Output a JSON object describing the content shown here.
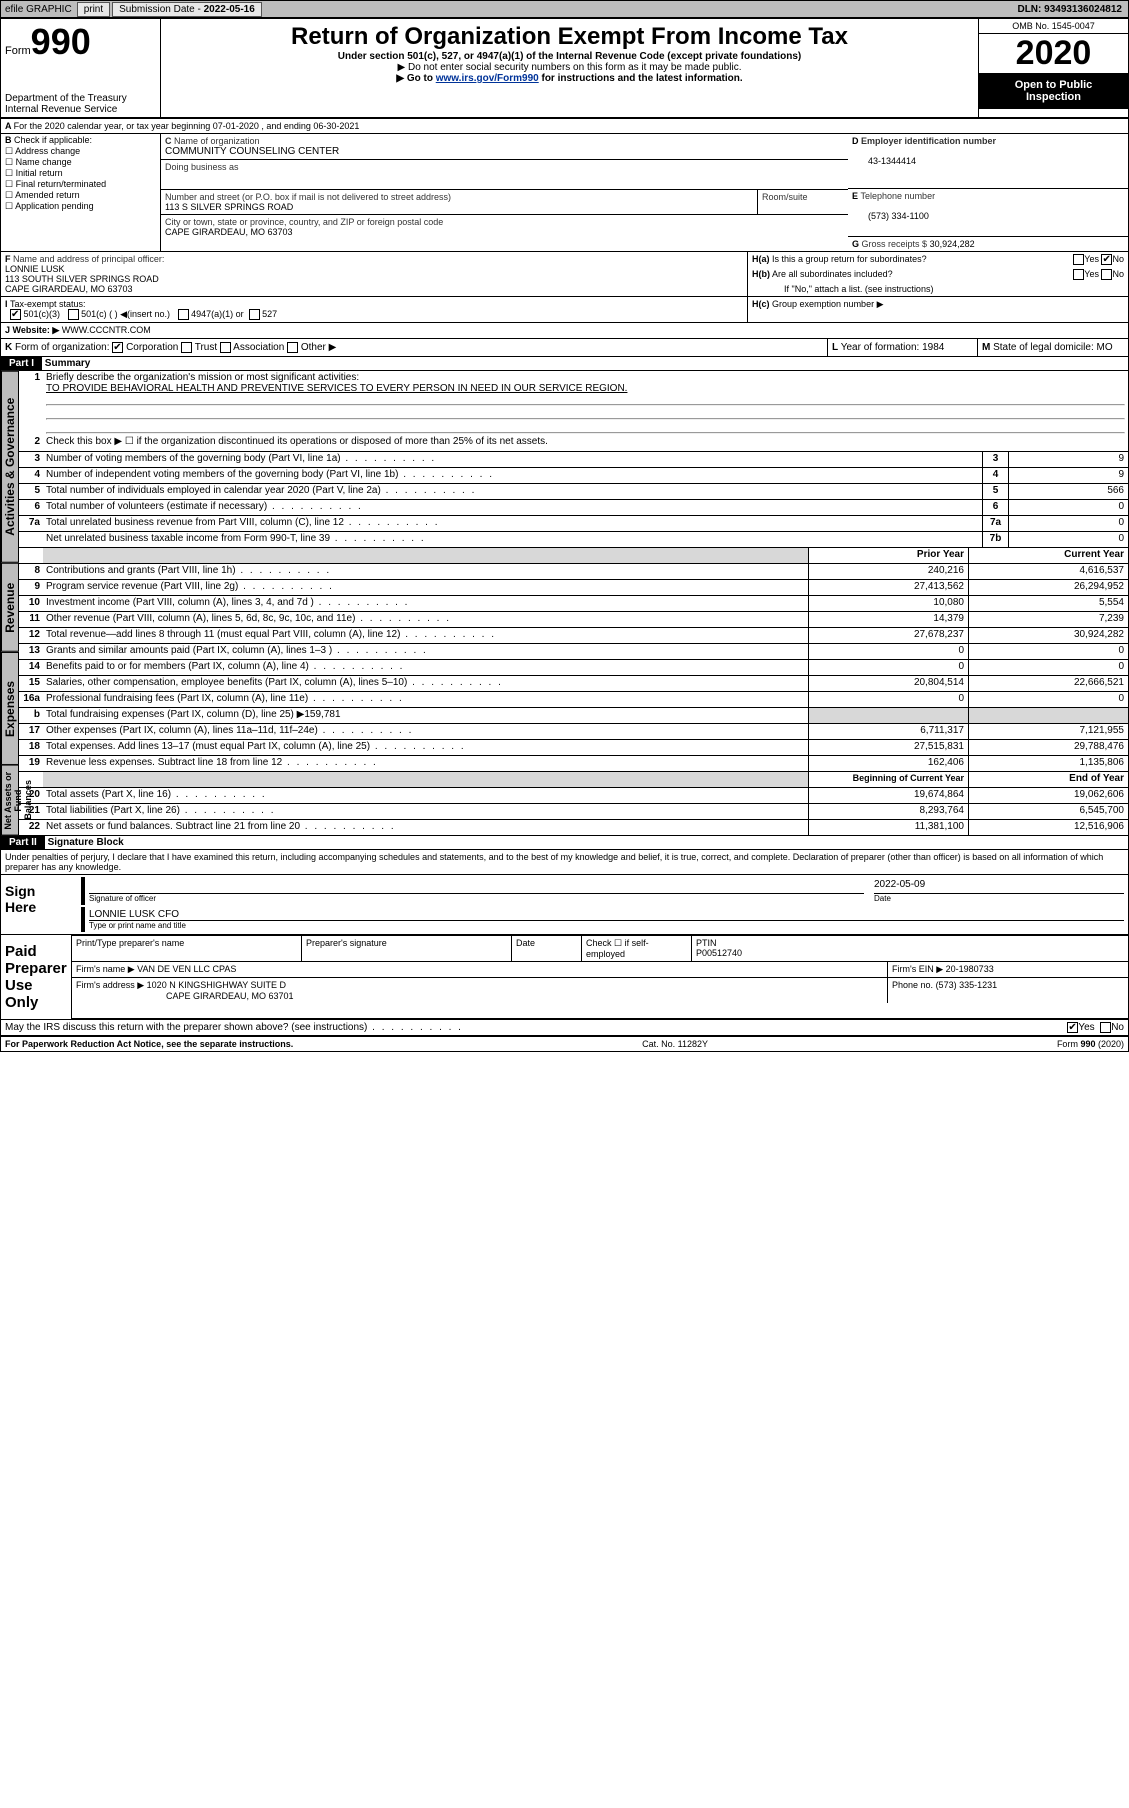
{
  "topbar": {
    "efile": "efile GRAPHIC",
    "print": "print",
    "subdate_lbl": "Submission Date -",
    "subdate": "2022-05-16",
    "dln": "DLN: 93493136024812"
  },
  "header": {
    "form_prefix": "Form",
    "form_no": "990",
    "dept1": "Department of the Treasury",
    "dept2": "Internal Revenue Service",
    "title": "Return of Organization Exempt From Income Tax",
    "sub1": "Under section 501(c), 527, or 4947(a)(1) of the Internal Revenue Code (except private foundations)",
    "sub2": "▶ Do not enter social security numbers on this form as it may be made public.",
    "sub3_pre": "▶ Go to ",
    "sub3_link": "www.irs.gov/Form990",
    "sub3_post": " for instructions and the latest information.",
    "omb": "OMB No. 1545-0047",
    "year": "2020",
    "otp1": "Open to Public",
    "otp2": "Inspection"
  },
  "A": {
    "text": "For the 2020 calendar year, or tax year beginning 07-01-2020    , and ending 06-30-2021"
  },
  "B": {
    "hdr": "Check if applicable:",
    "opts": [
      "Address change",
      "Name change",
      "Initial return",
      "Final return/terminated",
      "Amended return",
      "Application pending"
    ]
  },
  "C": {
    "name_lbl": "Name of organization",
    "name": "COMMUNITY COUNSELING CENTER",
    "dba_lbl": "Doing business as",
    "dba": "",
    "addr_lbl": "Number and street (or P.O. box if mail is not delivered to street address)",
    "room_lbl": "Room/suite",
    "addr": "113 S SILVER SPRINGS ROAD",
    "city_lbl": "City or town, state or province, country, and ZIP or foreign postal code",
    "city": "CAPE GIRARDEAU, MO  63703"
  },
  "D": {
    "lbl": "Employer identification number",
    "val": "43-1344414"
  },
  "E": {
    "lbl": "Telephone number",
    "val": "(573) 334-1100"
  },
  "G": {
    "lbl": "Gross receipts $",
    "val": "30,924,282"
  },
  "F": {
    "lbl": "Name and address of principal officer:",
    "name": "LONNIE LUSK",
    "addr1": "113 SOUTH SILVER SPRINGS ROAD",
    "addr2": "CAPE GIRARDEAU, MO  63703"
  },
  "H": {
    "a": "Is this a group return for subordinates?",
    "b": "Are all subordinates included?",
    "note": "If \"No,\" attach a list. (see instructions)",
    "c": "Group exemption number ▶",
    "yes": "Yes",
    "no": "No"
  },
  "I": {
    "lbl": "Tax-exempt status:",
    "o1": "501(c)(3)",
    "o2": "501(c) (  ) ◀(insert no.)",
    "o3": "4947(a)(1) or",
    "o4": "527"
  },
  "J": {
    "lbl": "Website: ▶",
    "val": "WWW.CCCNTR.COM"
  },
  "K": {
    "lbl": "Form of organization:",
    "o1": "Corporation",
    "o2": "Trust",
    "o3": "Association",
    "o4": "Other ▶"
  },
  "L": {
    "lbl": "Year of formation:",
    "val": "1984"
  },
  "M": {
    "lbl": "State of legal domicile:",
    "val": "MO"
  },
  "part1": {
    "hdr": "Part I",
    "title": "Summary"
  },
  "sidetabs": {
    "ag": "Activities & Governance",
    "rev": "Revenue",
    "exp": "Expenses",
    "na": "Net Assets or Fund Balances"
  },
  "s": {
    "q1": "Briefly describe the organization's mission or most significant activities:",
    "q1v": "TO PROVIDE BEHAVIORAL HEALTH AND PREVENTIVE SERVICES TO EVERY PERSON IN NEED IN OUR SERVICE REGION.",
    "q2": "Check this box ▶ ☐  if the organization discontinued its operations or disposed of more than 25% of its net assets.",
    "rows_ag": [
      {
        "n": "3",
        "d": "Number of voting members of the governing body (Part VI, line 1a)",
        "b": "3",
        "v": "9"
      },
      {
        "n": "4",
        "d": "Number of independent voting members of the governing body (Part VI, line 1b)",
        "b": "4",
        "v": "9"
      },
      {
        "n": "5",
        "d": "Total number of individuals employed in calendar year 2020 (Part V, line 2a)",
        "b": "5",
        "v": "566"
      },
      {
        "n": "6",
        "d": "Total number of volunteers (estimate if necessary)",
        "b": "6",
        "v": "0"
      },
      {
        "n": "7a",
        "d": "Total unrelated business revenue from Part VIII, column (C), line 12",
        "b": "7a",
        "v": "0"
      },
      {
        "n": "",
        "d": "Net unrelated business taxable income from Form 990-T, line 39",
        "b": "7b",
        "v": "0"
      }
    ],
    "yrhdr_prior": "Prior Year",
    "yrhdr_curr": "Current Year",
    "rows_rev": [
      {
        "n": "8",
        "d": "Contributions and grants (Part VIII, line 1h)",
        "p": "240,216",
        "c": "4,616,537"
      },
      {
        "n": "9",
        "d": "Program service revenue (Part VIII, line 2g)",
        "p": "27,413,562",
        "c": "26,294,952"
      },
      {
        "n": "10",
        "d": "Investment income (Part VIII, column (A), lines 3, 4, and 7d )",
        "p": "10,080",
        "c": "5,554"
      },
      {
        "n": "11",
        "d": "Other revenue (Part VIII, column (A), lines 5, 6d, 8c, 9c, 10c, and 11e)",
        "p": "14,379",
        "c": "7,239"
      },
      {
        "n": "12",
        "d": "Total revenue—add lines 8 through 11 (must equal Part VIII, column (A), line 12)",
        "p": "27,678,237",
        "c": "30,924,282"
      }
    ],
    "rows_exp": [
      {
        "n": "13",
        "d": "Grants and similar amounts paid (Part IX, column (A), lines 1–3 )",
        "p": "0",
        "c": "0"
      },
      {
        "n": "14",
        "d": "Benefits paid to or for members (Part IX, column (A), line 4)",
        "p": "0",
        "c": "0"
      },
      {
        "n": "15",
        "d": "Salaries, other compensation, employee benefits (Part IX, column (A), lines 5–10)",
        "p": "20,804,514",
        "c": "22,666,521"
      },
      {
        "n": "16a",
        "d": "Professional fundraising fees (Part IX, column (A), line 11e)",
        "p": "0",
        "c": "0"
      }
    ],
    "r16b": "Total fundraising expenses (Part IX, column (D), line 25) ▶159,781",
    "rows_exp2": [
      {
        "n": "17",
        "d": "Other expenses (Part IX, column (A), lines 11a–11d, 11f–24e)",
        "p": "6,711,317",
        "c": "7,121,955"
      },
      {
        "n": "18",
        "d": "Total expenses. Add lines 13–17 (must equal Part IX, column (A), line 25)",
        "p": "27,515,831",
        "c": "29,788,476"
      },
      {
        "n": "19",
        "d": "Revenue less expenses. Subtract line 18 from line 12",
        "p": "162,406",
        "c": "1,135,806"
      }
    ],
    "nahdr_b": "Beginning of Current Year",
    "nahdr_e": "End of Year",
    "rows_na": [
      {
        "n": "20",
        "d": "Total assets (Part X, line 16)",
        "p": "19,674,864",
        "c": "19,062,606"
      },
      {
        "n": "21",
        "d": "Total liabilities (Part X, line 26)",
        "p": "8,293,764",
        "c": "6,545,700"
      },
      {
        "n": "22",
        "d": "Net assets or fund balances. Subtract line 21 from line 20",
        "p": "11,381,100",
        "c": "12,516,906"
      }
    ]
  },
  "part2": {
    "hdr": "Part II",
    "title": "Signature Block"
  },
  "perjury": "Under penalties of perjury, I declare that I have examined this return, including accompanying schedules and statements, and to the best of my knowledge and belief, it is true, correct, and complete. Declaration of preparer (other than officer) is based on all information of which preparer has any knowledge.",
  "sign": {
    "here": "Sign Here",
    "sig_lbl": "Signature of officer",
    "date_lbl": "Date",
    "date": "2022-05-09",
    "name": "LONNIE LUSK  CFO",
    "name_lbl": "Type or print name and title"
  },
  "prep": {
    "lbl": "Paid Preparer Use Only",
    "c1": "Print/Type preparer's name",
    "c2": "Preparer's signature",
    "c3": "Date",
    "c4a": "Check ☐ if self-employed",
    "c5_lbl": "PTIN",
    "c5": "P00512740",
    "firm_lbl": "Firm's name    ▶",
    "firm": "VAN DE VEN LLC CPAS",
    "ein_lbl": "Firm's EIN ▶",
    "ein": "20-1980733",
    "addr_lbl": "Firm's address ▶",
    "addr1": "1020 N KINGSHIGHWAY SUITE D",
    "addr2": "CAPE GIRARDEAU, MO  63701",
    "phone_lbl": "Phone no.",
    "phone": "(573) 335-1231"
  },
  "discuss": "May the IRS discuss this return with the preparer shown above? (see instructions)",
  "footer": {
    "l": "For Paperwork Reduction Act Notice, see the separate instructions.",
    "c": "Cat. No. 11282Y",
    "r": "Form 990 (2020)"
  }
}
